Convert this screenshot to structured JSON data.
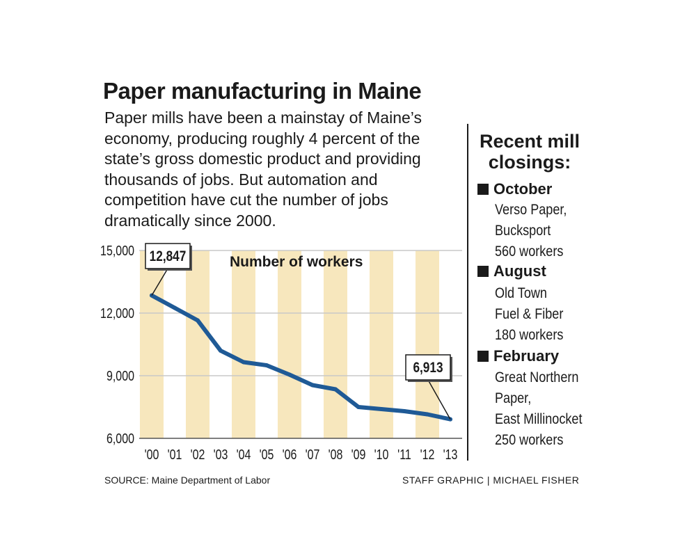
{
  "title": "Paper manufacturing in Maine",
  "intro": "Paper mills have been a mainstay of Maine’s economy, producing roughly 4 percent of the state’s gross domestic product and providing thousands of jobs. But automation and competition have cut the number of jobs dramatically since 2000.",
  "sidebar": {
    "heading_line1": "Recent mill",
    "heading_line2": "closings:",
    "closings": [
      {
        "month": "October",
        "lines": [
          "Verso Paper,",
          "Bucksport",
          "560 workers"
        ]
      },
      {
        "month": "August",
        "lines": [
          "Old Town",
          "Fuel & Fiber",
          "180 workers"
        ]
      },
      {
        "month": "February",
        "lines": [
          "Great Northern",
          "Paper,",
          "East Millinocket",
          "250 workers"
        ]
      }
    ]
  },
  "source": "SOURCE: Maine Department of Labor",
  "credit": "STAFF GRAPHIC | MICHAEL FISHER",
  "colors": {
    "line": "#1f5a96",
    "stripe": "#f7e7bd",
    "grid": "#c8c8c8",
    "text": "#1a1a1a"
  },
  "chart_data": {
    "type": "line",
    "title": "Number of workers",
    "x": [
      "'00",
      "'01",
      "'02",
      "'03",
      "'04",
      "'05",
      "'06",
      "'07",
      "'08",
      "'09",
      "'10",
      "'11",
      "'12",
      "'13"
    ],
    "series": [
      {
        "values": [
          12847,
          12250,
          11650,
          10200,
          9650,
          9500,
          9050,
          8550,
          8350,
          7500,
          7400,
          7300,
          7150,
          6913
        ]
      }
    ],
    "yticks": [
      "15,000",
      "12,000",
      "9,000",
      "6,000"
    ],
    "ytick_values": [
      15000,
      12000,
      9000,
      6000
    ],
    "ylim": [
      6000,
      15000
    ],
    "grid": true,
    "callouts": [
      {
        "index": 0,
        "label": "12,847"
      },
      {
        "index": 13,
        "label": "6,913"
      }
    ]
  }
}
